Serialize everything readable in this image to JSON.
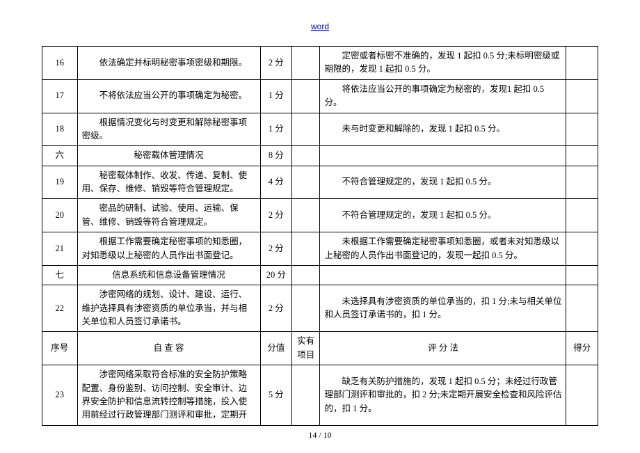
{
  "header_link": "word",
  "footer": "14 / 10",
  "headers": {
    "c1": "序号",
    "c2": "自 查 容",
    "c3": "分值",
    "c4": "实有项目",
    "c5": "评 分 法",
    "c6": "得分"
  },
  "rows": [
    {
      "num": "16",
      "item": "依法确定并标明秘密事项密级和期限。",
      "score": "2 分",
      "col4": "",
      "criteria": "定密或者标密不准确的，发现 1 起扣 0.5 分;未标明密级或期限的，发现 1 起扣 0.5 分。",
      "col6": ""
    },
    {
      "num": "17",
      "item": "不将依法应当公开的事项确定为秘密。",
      "score": "1 分",
      "col4": "",
      "criteria": "将依法应当公开的事项确定为秘密的，发现1 起扣 0.5 分。",
      "col6": ""
    },
    {
      "num": "18",
      "item": "根据情况变化与时变更和解除秘密事项密级。",
      "score": "1 分",
      "col4": "",
      "criteria": "未与时变更和解除的，发现 1 起扣 0.5 分。",
      "col6": ""
    },
    {
      "num": "六",
      "item": "秘密载体管理情况",
      "score": "8 分",
      "col4": "",
      "criteria": "",
      "col6": "",
      "section": true
    },
    {
      "num": "19",
      "item": "秘密载体制作、收发、传递、复制、使用、保存、维修、销毁等符合管理规定。",
      "score": "4 分",
      "col4": "",
      "criteria": "不符合管理规定的，发现 1 起扣 0.5 分。",
      "col6": ""
    },
    {
      "num": "20",
      "item": "密品的研制、试验、使用、运输、保管、维修、销毁等符合管理规定。",
      "score": "2 分",
      "col4": "",
      "criteria": "不符合管理规定的，发现 1 起扣 0.5 分。",
      "col6": ""
    },
    {
      "num": "21",
      "item": "根据工作需要确定秘密事项的知悉圈，对知悉级以上秘密的人员作出书面登记。",
      "score": "2 分",
      "col4": "",
      "criteria": "未根据工作需要确定秘密事项知悉圈，或者未对知悉级以上秘密的人员作出书面登记的，发现一起扣 0.5 分。",
      "col6": ""
    },
    {
      "num": "七",
      "item": "信息系统和信息设备管理情况",
      "score": "20 分",
      "col4": "",
      "criteria": "",
      "col6": "",
      "section": true
    },
    {
      "num": "22",
      "item": "涉密网络的规划、设计、建设、运行、维护选择具有涉密资质的单位承当，并与相关单位和人员签订承诺书。",
      "score": "2 分",
      "col4": "",
      "criteria": "未选择具有涉密资质的单位承当的，扣 1 分;未与相关单位和人员签订承诺书的，扣 1 分。",
      "col6": ""
    },
    {
      "header_row": true
    },
    {
      "num": "23",
      "item": "涉密网络采取符合标准的安全防护策略配置、身份鉴别、访问控制、安全审计、边界安全防护和信息流转控制等措施，投入使用前经过行政管理部门测评和审批，定期开",
      "score": "5 分",
      "col4": "",
      "criteria": "缺乏有关防护措施的，发现 1 起扣 0.5 分；未经过行政管理部门测评和审批的，扣 2 分;未定期开展安全检查和风险评估的，扣 1 分。",
      "col6": ""
    }
  ]
}
